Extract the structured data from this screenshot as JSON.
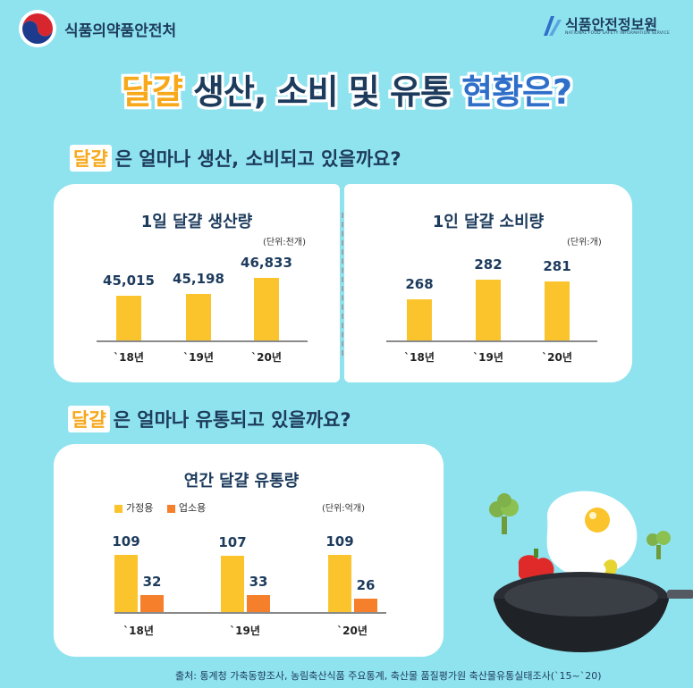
{
  "header": {
    "org_left": "식품의약품안전처",
    "org_right": "식품안전정보원",
    "org_right_sub": "NATIONAL FOOD SAFETY INFORMATION SERVICE"
  },
  "title": {
    "part1": "달걀",
    "part2": " 생산, 소비 및 유통 ",
    "part3": "현황은?"
  },
  "section1": {
    "highlight": "달걀",
    "text": "은 얼마나 생산, 소비되고 있을까요?"
  },
  "section2": {
    "highlight": "달걀",
    "text": "은 얼마나 유통되고 있을까요?"
  },
  "colors": {
    "bar_yellow": "#fcc42c",
    "bar_orange": "#f57f2a"
  },
  "chart_data": [
    {
      "type": "bar",
      "title": "1일 달걀 생산량",
      "unit": "(단위:천개)",
      "categories": [
        "`18년",
        "`19년",
        "`20년"
      ],
      "values": [
        45015,
        45198,
        46833
      ],
      "value_labels": [
        "45,015",
        "45,198",
        "46,833"
      ]
    },
    {
      "type": "bar",
      "title": "1인 달걀 소비량",
      "unit": "(단위:개)",
      "categories": [
        "`18년",
        "`19년",
        "`20년"
      ],
      "values": [
        268,
        282,
        281
      ],
      "value_labels": [
        "268",
        "282",
        "281"
      ]
    },
    {
      "type": "bar",
      "title": "연간 달걀 유통량",
      "unit": "(단위:억개)",
      "categories": [
        "`18년",
        "`19년",
        "`20년"
      ],
      "legend": "top-left",
      "series": [
        {
          "name": "가정용",
          "values": [
            109,
            107,
            109
          ]
        },
        {
          "name": "업소용",
          "values": [
            32,
            33,
            26
          ]
        }
      ]
    }
  ],
  "source": "출처: 통계청 가축동향조사, 농림축산식품 주요통계, 축산물 품질평가원 축산물유통실태조사(`15~`20)"
}
